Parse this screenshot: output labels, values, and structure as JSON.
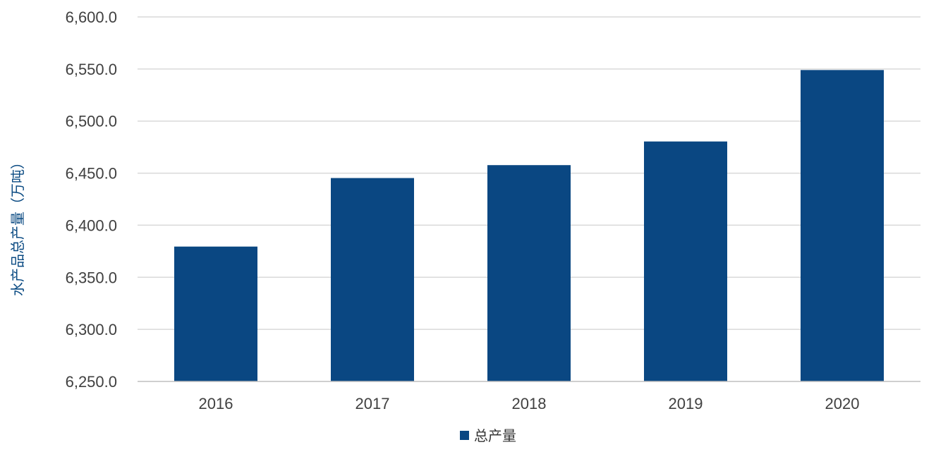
{
  "colors": {
    "bar": "#0a4782",
    "grid": "#d9d9d9",
    "text": "#404040"
  },
  "chart_data": {
    "type": "bar",
    "title": "",
    "xlabel": "",
    "ylabel": "水产品总产量（万吨）",
    "categories": [
      "2016",
      "2017",
      "2018",
      "2019",
      "2020"
    ],
    "series": [
      {
        "name": "总产量",
        "values": [
          6379.5,
          6445.3,
          6457.7,
          6480.4,
          6549.0
        ]
      }
    ],
    "ylim": [
      6250,
      6600
    ],
    "yticks": [
      "6,600.0",
      "6,550.0",
      "6,500.0",
      "6,450.0",
      "6,400.0",
      "6,350.0",
      "6,300.0",
      "6,250.0"
    ],
    "ytick_values": [
      6600,
      6550,
      6500,
      6450,
      6400,
      6350,
      6300,
      6250
    ],
    "grid": true,
    "legend": "bottom-center"
  }
}
